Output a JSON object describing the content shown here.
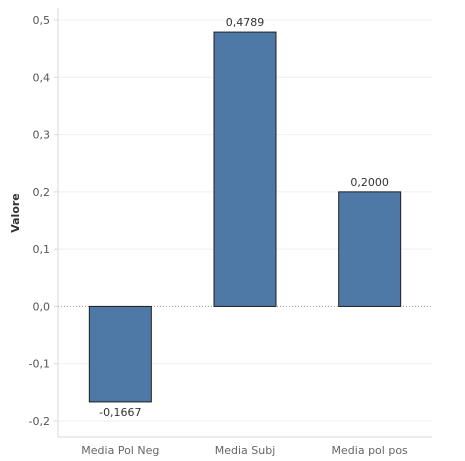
{
  "chart_data": {
    "type": "bar",
    "categories": [
      "Media Pol Neg",
      "Media Subj",
      "Media pol pos"
    ],
    "values": [
      -0.1667,
      0.4789,
      0.2
    ],
    "data_labels": [
      "-0,1667",
      "0,4789",
      "0,2000"
    ],
    "ylabel": "Valore",
    "xlabel": "",
    "ylim": [
      -0.2,
      0.5
    ],
    "yticks": [
      0.5,
      0.4,
      0.3,
      0.2,
      0.1,
      0.0,
      -0.1,
      -0.2
    ],
    "ytick_labels": [
      "0,5",
      "0,4",
      "0,3",
      "0,2",
      "0,1",
      "0,0",
      "-0,1",
      "-0,2"
    ],
    "bar_color": "#4e79a7",
    "bar_stroke": "#1f1f1f",
    "grid": true,
    "zero_line": "dotted"
  }
}
